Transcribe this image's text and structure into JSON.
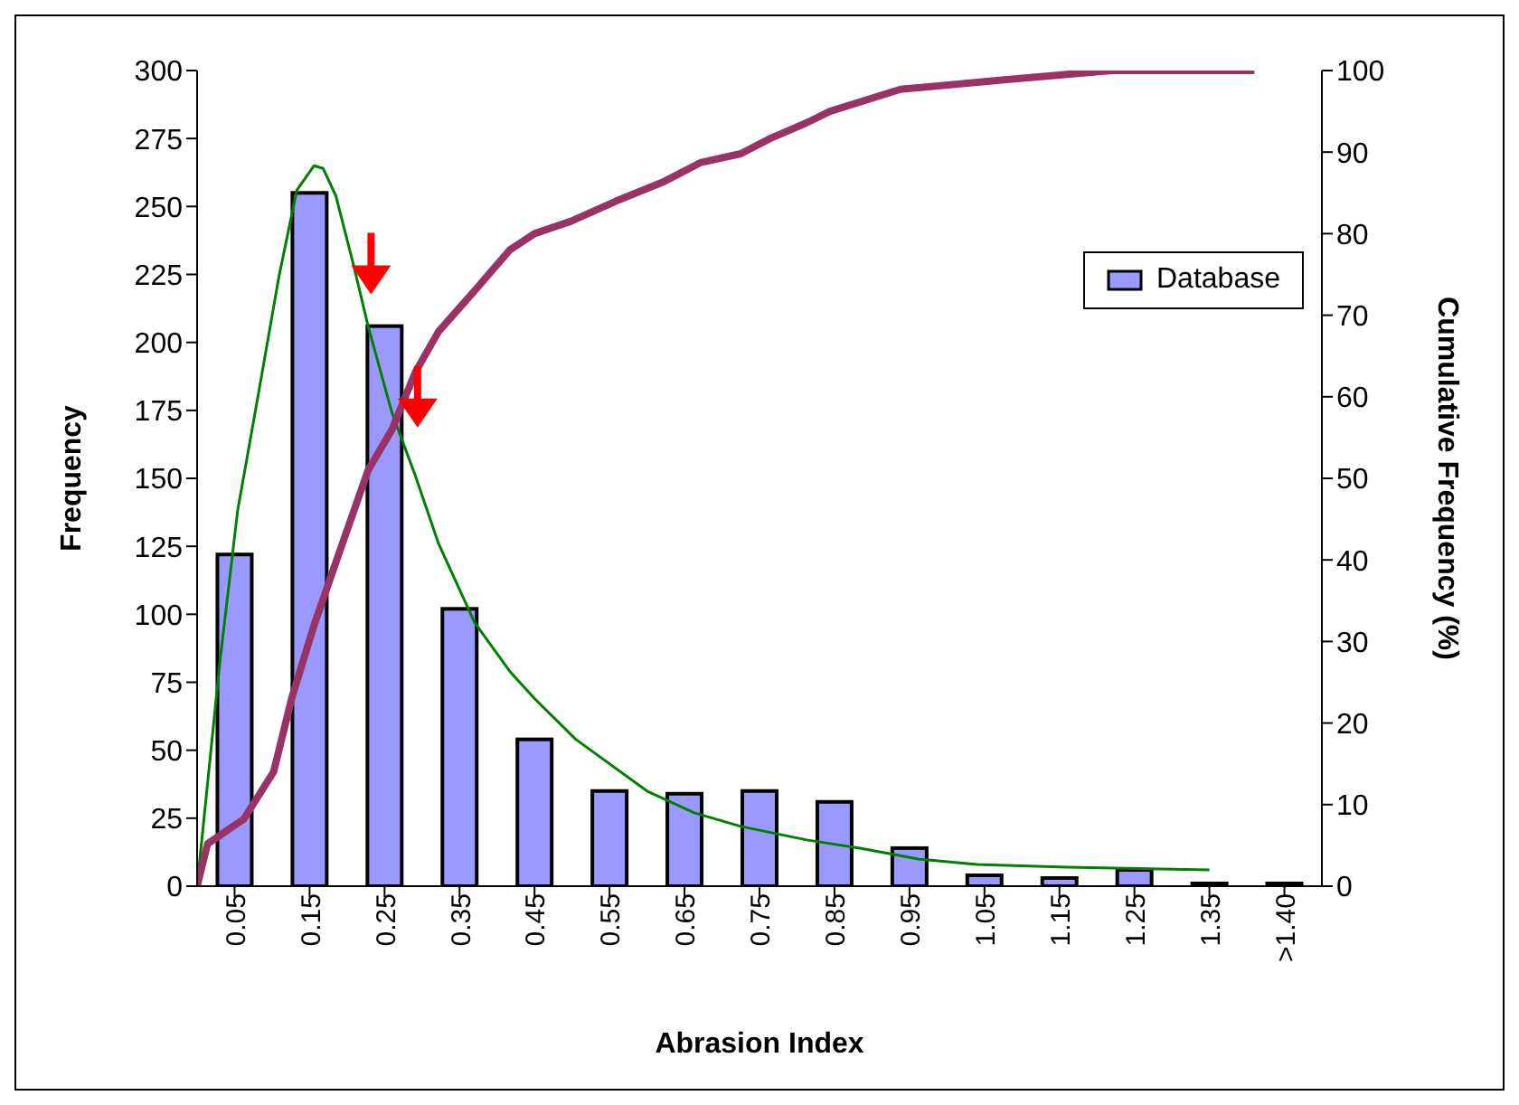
{
  "chart_data": {
    "type": "bar",
    "xlabel": "Abrasion Index",
    "ylabel": "Frequency",
    "y2label": "Cumulative Frequency (%)",
    "xlim": [
      0,
      1.5
    ],
    "xticks": [
      0.05,
      0.15,
      0.25,
      0.35,
      0.45,
      0.55,
      0.65,
      0.75,
      0.85,
      0.95,
      1.05,
      1.15,
      1.25,
      1.35,
      {
        "value": 1.45,
        "label": ">1.40"
      }
    ],
    "ylim": [
      0,
      300
    ],
    "yticks": [
      0,
      25,
      50,
      75,
      100,
      125,
      150,
      175,
      200,
      225,
      250,
      275,
      300
    ],
    "y2lim": [
      0,
      100
    ],
    "y2ticks": [
      0,
      10,
      20,
      30,
      40,
      50,
      60,
      70,
      80,
      90,
      100
    ],
    "grid": false,
    "legend": "right",
    "series": [
      {
        "name": "Database",
        "color": "#9999ff",
        "x": [
          0.05,
          0.15,
          0.25,
          0.35,
          0.45,
          0.55,
          0.65,
          0.75,
          0.85,
          0.95,
          1.05,
          1.15,
          1.25,
          1.35,
          1.45
        ],
        "values": [
          122,
          255,
          206,
          102,
          54,
          35,
          34,
          35,
          31,
          14,
          4,
          3,
          6,
          1,
          1
        ]
      },
      {
        "type": "line",
        "color": "#008000",
        "x": [
          0,
          0.031,
          0.054,
          0.083,
          0.109,
          0.133,
          0.156,
          0.168,
          0.185,
          0.209,
          0.228,
          0.26,
          0.291,
          0.322,
          0.37,
          0.417,
          0.45,
          0.505,
          0.6,
          0.663,
          0.725,
          0.813,
          0.884,
          0.962,
          1.04,
          1.16,
          1.35
        ],
        "values": [
          0,
          84,
          138,
          183,
          224,
          256,
          265,
          264,
          254,
          228,
          206,
          174,
          151,
          126,
          97,
          79,
          69,
          54,
          35,
          27,
          22,
          17,
          14,
          10,
          8,
          7,
          6
        ]
      },
      {
        "type": "line",
        "axis": "y2",
        "color": "#993366",
        "x": [
          0,
          0.014,
          0.062,
          0.102,
          0.126,
          0.156,
          0.19,
          0.228,
          0.26,
          0.291,
          0.322,
          0.37,
          0.417,
          0.45,
          0.498,
          0.559,
          0.623,
          0.671,
          0.725,
          0.765,
          0.813,
          0.844,
          0.938,
          1.08,
          1.22,
          1.41
        ],
        "values": [
          0,
          5.2,
          8.2,
          14,
          23,
          32,
          41,
          51,
          56,
          63,
          68,
          73,
          78,
          80,
          81.5,
          84,
          86.4,
          88.7,
          89.8,
          91.7,
          93.6,
          95,
          97.7,
          98.9,
          100,
          100
        ]
      },
      {
        "type": "scatter",
        "color": "#ff0000",
        "x": [
          0.232,
          0.294
        ],
        "values": [
          229,
          180
        ]
      }
    ]
  }
}
